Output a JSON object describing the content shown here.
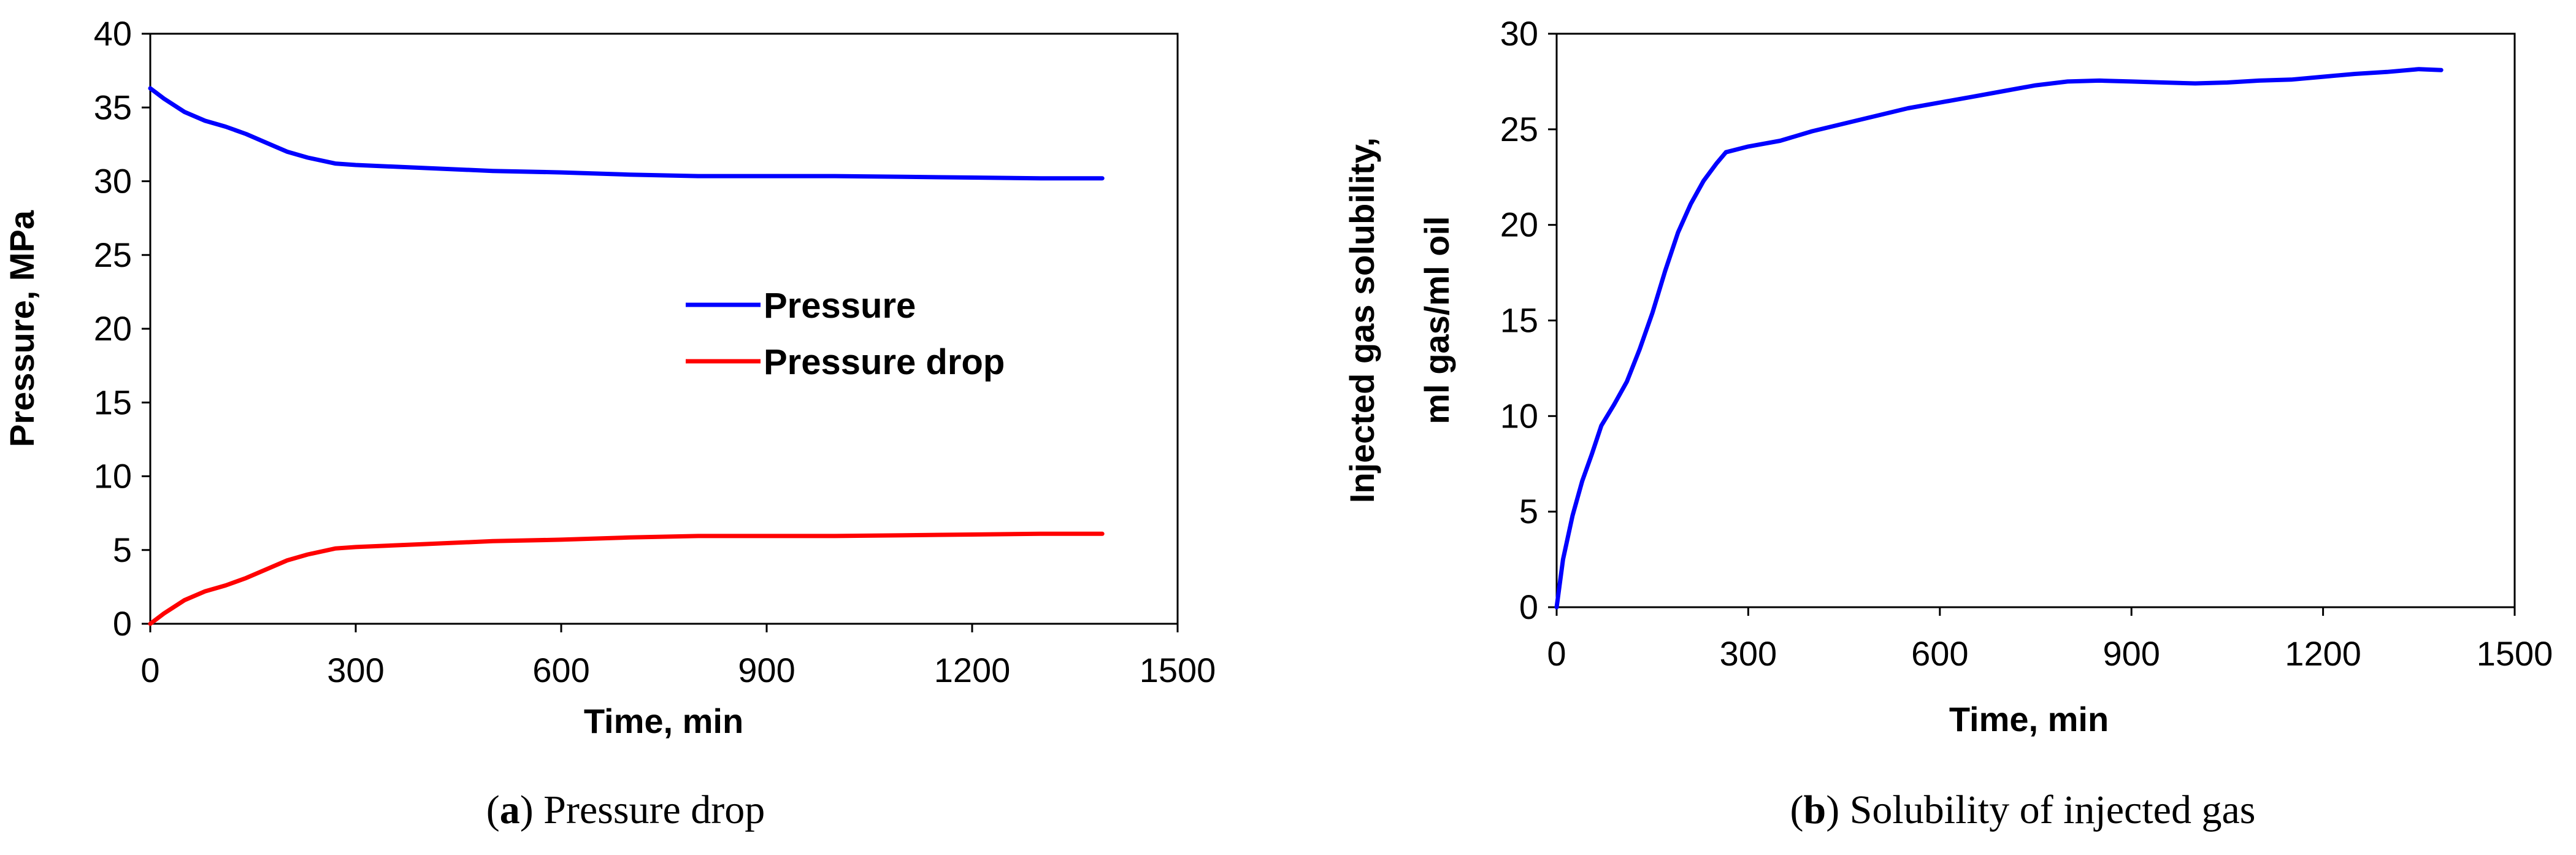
{
  "chart_data": [
    {
      "type": "line",
      "title": "",
      "xlabel": "Time, min",
      "ylabel": "Pressure, MPa",
      "xlim": [
        0,
        1500
      ],
      "ylim": [
        0,
        40
      ],
      "xticks": [
        "0",
        "300",
        "600",
        "900",
        "1200",
        "1500"
      ],
      "yticks": [
        "0",
        "5",
        "10",
        "15",
        "20",
        "25",
        "30",
        "35",
        "40"
      ],
      "grid": false,
      "legend_position": "center-right",
      "caption": {
        "label": "a",
        "text": "Pressure drop"
      },
      "series": [
        {
          "name": "Pressure",
          "color": "#0000ff",
          "x": [
            0,
            20,
            50,
            80,
            110,
            140,
            170,
            200,
            230,
            270,
            300,
            400,
            500,
            600,
            700,
            800,
            900,
            1000,
            1100,
            1200,
            1300,
            1390
          ],
          "y": [
            36.3,
            35.6,
            34.7,
            34.1,
            33.7,
            33.2,
            32.6,
            32.0,
            31.6,
            31.2,
            31.1,
            30.9,
            30.7,
            30.6,
            30.45,
            30.35,
            30.35,
            30.35,
            30.3,
            30.25,
            30.2,
            30.2
          ]
        },
        {
          "name": "Pressure drop",
          "color": "#ff0000",
          "x": [
            0,
            20,
            50,
            80,
            110,
            140,
            170,
            200,
            230,
            270,
            300,
            400,
            500,
            600,
            700,
            800,
            900,
            1000,
            1100,
            1200,
            1300,
            1390
          ],
          "y": [
            0,
            0.7,
            1.6,
            2.2,
            2.6,
            3.1,
            3.7,
            4.3,
            4.7,
            5.1,
            5.2,
            5.4,
            5.6,
            5.7,
            5.85,
            5.95,
            5.95,
            5.95,
            6.0,
            6.05,
            6.1,
            6.1
          ]
        }
      ]
    },
    {
      "type": "line",
      "title": "",
      "xlabel": "Time, min",
      "ylabel": [
        "Injected gas solubility,",
        "ml gas/ml oil"
      ],
      "xlim": [
        0,
        1500
      ],
      "ylim": [
        0,
        30
      ],
      "xticks": [
        "0",
        "300",
        "600",
        "900",
        "1200",
        "1500"
      ],
      "yticks": [
        "0",
        "5",
        "10",
        "15",
        "20",
        "25",
        "30"
      ],
      "grid": false,
      "caption": {
        "label": "b",
        "text": "Solubility of injected gas"
      },
      "series": [
        {
          "name": "Injected gas solubility",
          "color": "#0000ff",
          "x": [
            0,
            10,
            25,
            40,
            55,
            70,
            90,
            110,
            130,
            150,
            170,
            190,
            210,
            230,
            250,
            265,
            300,
            350,
            400,
            450,
            500,
            550,
            600,
            650,
            700,
            750,
            800,
            850,
            900,
            950,
            1000,
            1050,
            1100,
            1150,
            1200,
            1250,
            1300,
            1350,
            1385
          ],
          "y": [
            0,
            2.5,
            4.8,
            6.6,
            8.0,
            9.5,
            10.6,
            11.8,
            13.5,
            15.4,
            17.6,
            19.6,
            21.1,
            22.3,
            23.2,
            23.8,
            24.1,
            24.4,
            24.9,
            25.3,
            25.7,
            26.1,
            26.4,
            26.7,
            27.0,
            27.3,
            27.5,
            27.55,
            27.5,
            27.45,
            27.4,
            27.45,
            27.55,
            27.6,
            27.75,
            27.9,
            28.0,
            28.15,
            28.1
          ]
        }
      ]
    }
  ]
}
